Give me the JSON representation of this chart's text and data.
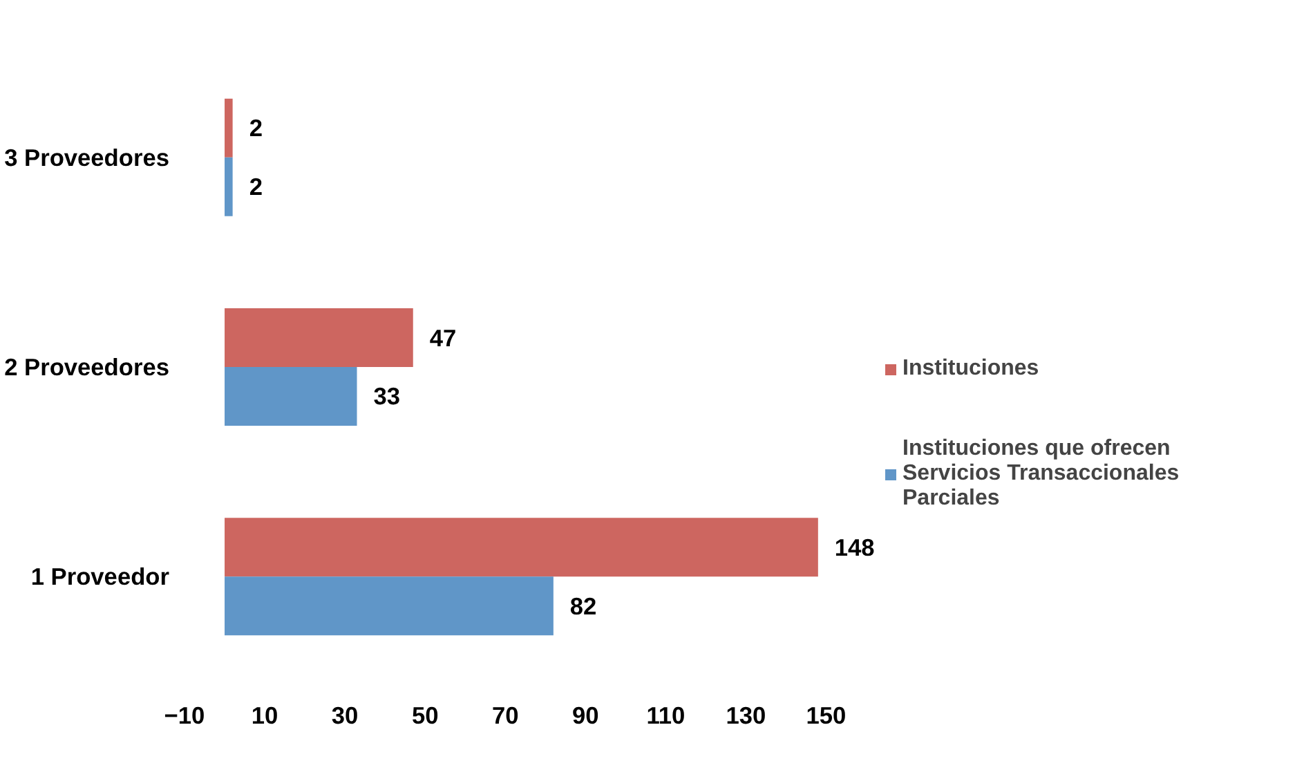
{
  "chart_data": {
    "type": "bar",
    "orientation": "horizontal",
    "categories": [
      "3 Proveedores",
      "2 Proveedores",
      "1 Proveedor"
    ],
    "series": [
      {
        "name": "Instituciones",
        "color": "#cd6660",
        "values": [
          2,
          47,
          148
        ]
      },
      {
        "name": "Instituciones que ofrecen Servicios Transaccionales Parciales",
        "color": "#6096c8",
        "values": [
          2,
          33,
          82
        ]
      }
    ],
    "xlim": [
      -10,
      150
    ],
    "xticks": [
      -10,
      10,
      30,
      50,
      70,
      90,
      110,
      130,
      150
    ],
    "data_labels": true,
    "grid": false,
    "legend": "right"
  }
}
